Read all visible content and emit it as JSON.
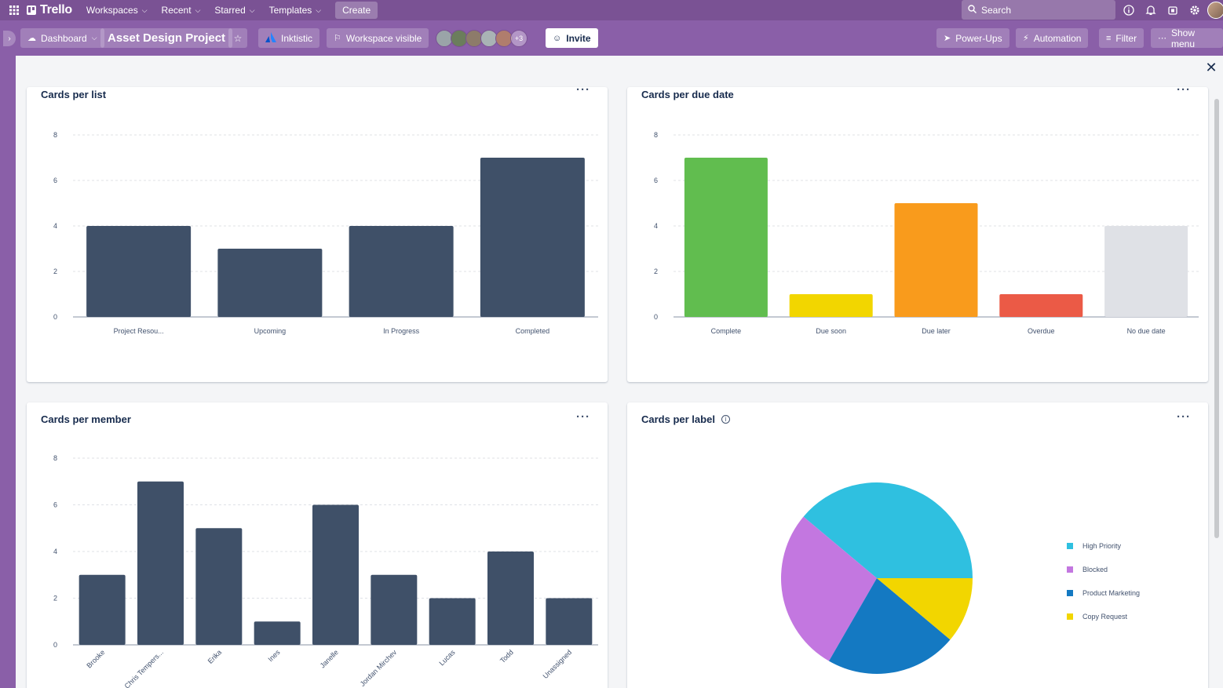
{
  "topbar": {
    "logo": "Trello",
    "nav": [
      {
        "label": "Workspaces"
      },
      {
        "label": "Recent"
      },
      {
        "label": "Starred"
      },
      {
        "label": "Templates"
      }
    ],
    "create_label": "Create",
    "search_placeholder": "Search"
  },
  "board": {
    "view_label": "Dashboard",
    "title": "Asset Design Project",
    "workspace_name": "Inktistic",
    "visibility_label": "Workspace visible",
    "members_more": "+3",
    "invite_label": "Invite",
    "power_ups_label": "Power-Ups",
    "automation_label": "Automation",
    "filter_label": "Filter",
    "show_menu_label": "Show menu"
  },
  "colors": {
    "bar_default": "#3f5068",
    "complete": "#61bd4f",
    "due_soon": "#f2d600",
    "due_later": "#f99b1c",
    "overdue": "#eb5a46",
    "no_due_date": "#dfe1e6",
    "high_priority": "#2fc0e0",
    "blocked": "#c377e0",
    "product_marketing": "#1479c2",
    "copy_request": "#f2d600"
  },
  "chart_data": [
    {
      "type": "bar",
      "title": "Cards per list",
      "categories": [
        "Project Resou...",
        "Upcoming",
        "In Progress",
        "Completed"
      ],
      "values": [
        4,
        3,
        4,
        7
      ],
      "ylim": [
        0,
        8
      ],
      "yticks": [
        0,
        2,
        4,
        6,
        8
      ],
      "grid": true
    },
    {
      "type": "bar",
      "title": "Cards per due date",
      "categories": [
        "Complete",
        "Due soon",
        "Due later",
        "Overdue",
        "No due date"
      ],
      "values": [
        7,
        1,
        5,
        1,
        4
      ],
      "ylim": [
        0,
        8
      ],
      "yticks": [
        0,
        2,
        4,
        6,
        8
      ],
      "grid": true
    },
    {
      "type": "bar",
      "title": "Cards per member",
      "categories": [
        "Brooke",
        "Chris Tempers...",
        "Erika",
        "Ines",
        "Janelle",
        "Jordan Mirchev",
        "Lucas",
        "Todd",
        "Unassigned"
      ],
      "values": [
        3,
        7,
        5,
        1,
        6,
        3,
        2,
        4,
        2
      ],
      "ylim": [
        0,
        8
      ],
      "yticks": [
        0,
        2,
        4,
        6,
        8
      ],
      "grid": true
    },
    {
      "type": "pie",
      "title": "Cards per label",
      "labels": [
        "High Priority",
        "Blocked",
        "Product Marketing",
        "Copy Request"
      ],
      "values": [
        7,
        5,
        4,
        2
      ],
      "legend": "right"
    }
  ]
}
